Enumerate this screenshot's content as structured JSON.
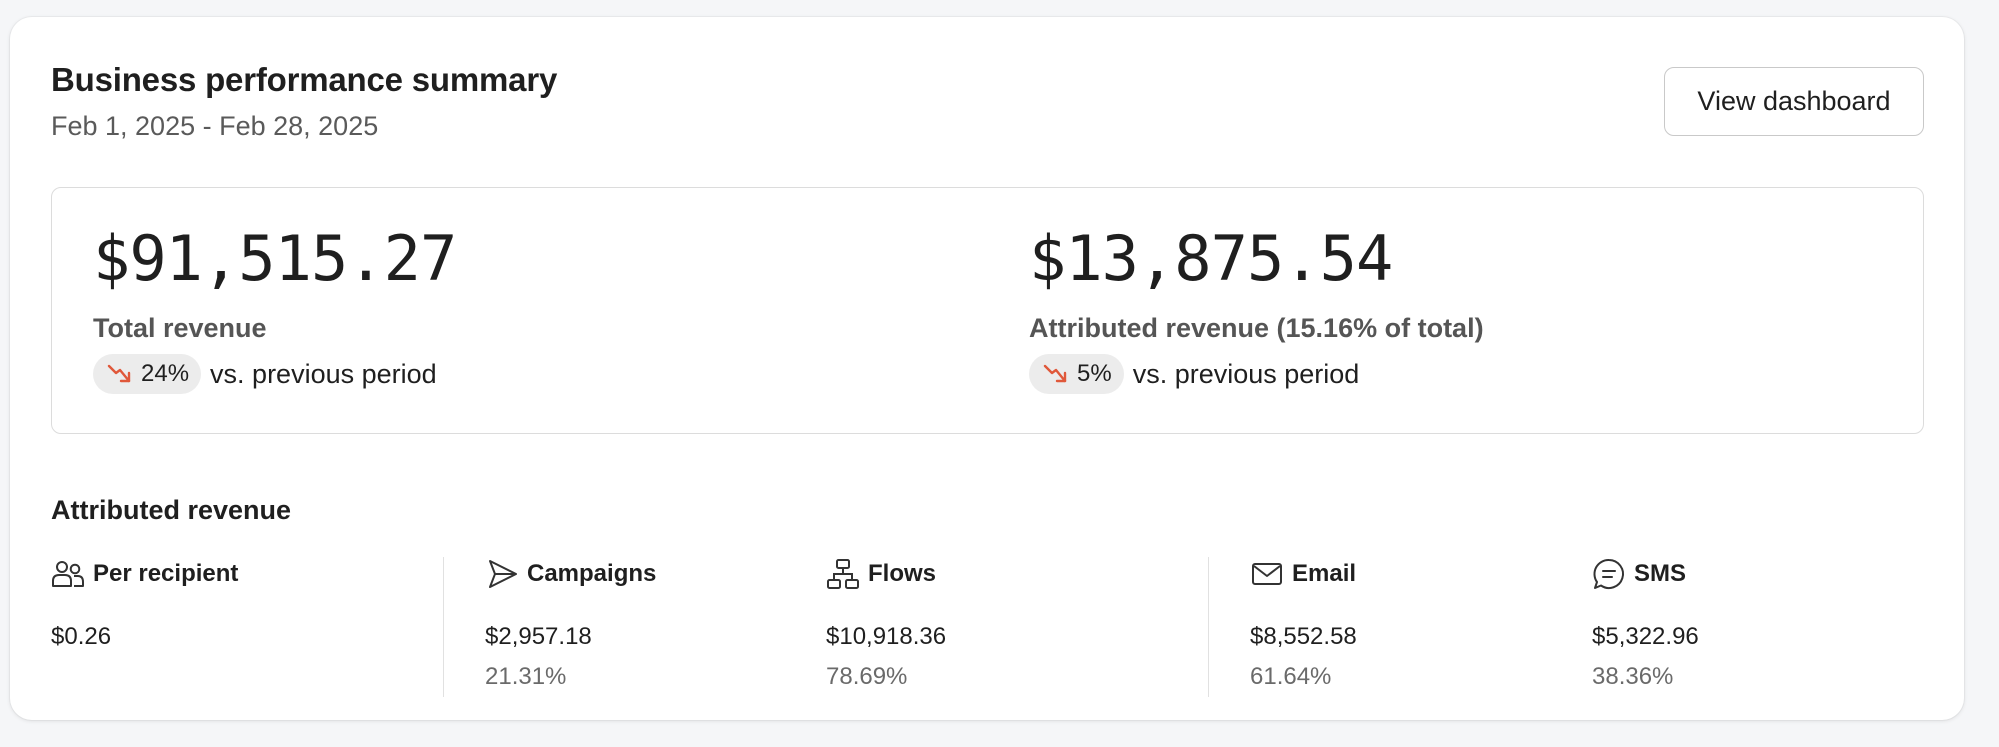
{
  "header": {
    "title": "Business performance summary",
    "date_range": "Feb 1, 2025 - Feb 28, 2025",
    "view_button_label": "View dashboard"
  },
  "summary": {
    "total": {
      "value": "$91,515.27",
      "label": "Total revenue",
      "change": "24%",
      "direction": "down",
      "comparison": "vs. previous period"
    },
    "attributed": {
      "value": "$13,875.54",
      "label": "Attributed revenue (15.16% of total)",
      "change": "5%",
      "direction": "down",
      "comparison": "vs. previous period"
    }
  },
  "attributed_section": {
    "title": "Attributed revenue",
    "stats": [
      {
        "label": "Per recipient",
        "icon": "people-icon",
        "value": "$0.26",
        "percent": ""
      },
      {
        "label": "Campaigns",
        "icon": "send-icon",
        "value": "$2,957.18",
        "percent": "21.31%"
      },
      {
        "label": "Flows",
        "icon": "flow-icon",
        "value": "$10,918.36",
        "percent": "78.69%"
      },
      {
        "label": "Email",
        "icon": "mail-icon",
        "value": "$8,552.58",
        "percent": "61.64%"
      },
      {
        "label": "SMS",
        "icon": "chat-icon",
        "value": "$5,322.96",
        "percent": "38.36%"
      }
    ]
  },
  "colors": {
    "trend_down": "#e0583a",
    "muted_text": "#6a6a6a",
    "pill_bg": "#ececec"
  }
}
